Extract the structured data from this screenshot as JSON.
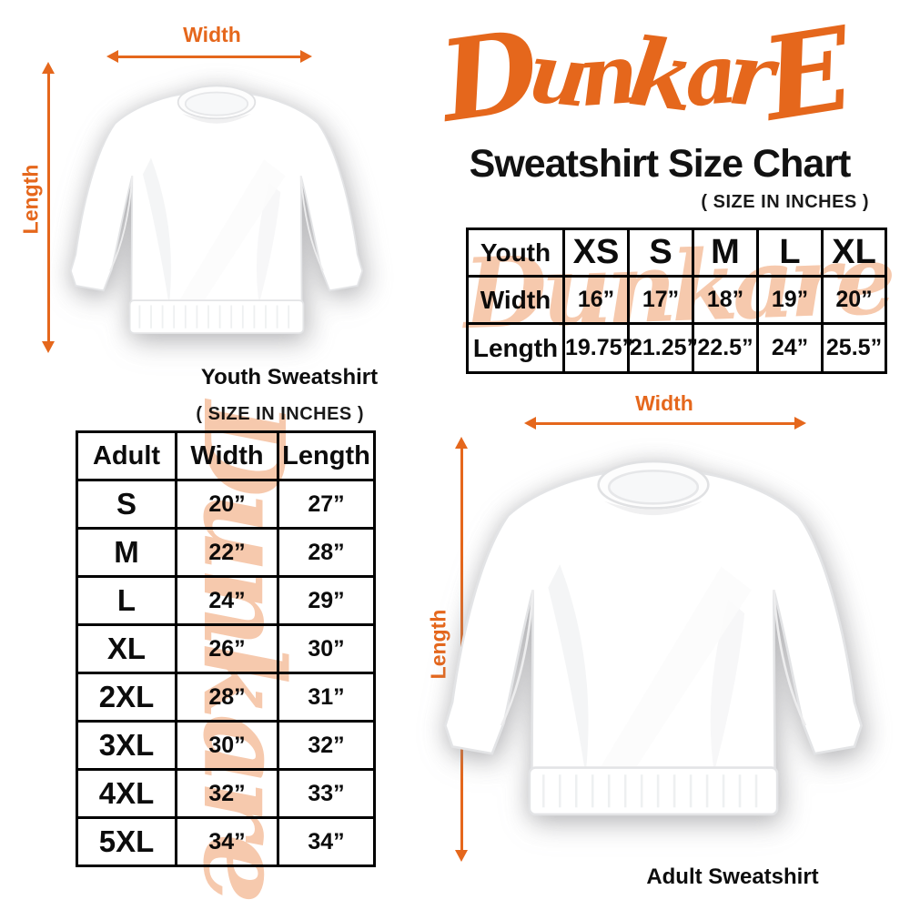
{
  "colors": {
    "accent": "#E5671C",
    "watermark": "#F6C9AD",
    "text": "#141414"
  },
  "logo": {
    "text": "DunkarE"
  },
  "header": {
    "title": "Sweatshirt Size Chart"
  },
  "watermark": {
    "text": "Dunkare"
  },
  "youth_diagram": {
    "width_label": "Width",
    "length_label": "Length",
    "caption": "Youth Sweatshirt"
  },
  "adult_diagram": {
    "width_label": "Width",
    "length_label": "Length",
    "caption": "Adult Sweatshirt"
  },
  "youth_table": {
    "size_note": "( SIZE IN INCHES )",
    "header": [
      "Youth",
      "XS",
      "S",
      "M",
      "L",
      "XL"
    ],
    "rows": [
      [
        "Width",
        "16”",
        "17”",
        "18”",
        "19”",
        "20”"
      ],
      [
        "Length",
        "19.75”",
        "21.25”",
        "22.5”",
        "24”",
        "25.5”"
      ]
    ]
  },
  "adult_table": {
    "size_note": "( SIZE IN INCHES )",
    "header": [
      "Adult",
      "Width",
      "Length"
    ],
    "rows": [
      [
        "S",
        "20”",
        "27”"
      ],
      [
        "M",
        "22”",
        "28”"
      ],
      [
        "L",
        "24”",
        "29”"
      ],
      [
        "XL",
        "26”",
        "30”"
      ],
      [
        "2XL",
        "28”",
        "31”"
      ],
      [
        "3XL",
        "30”",
        "32”"
      ],
      [
        "4XL",
        "32”",
        "33”"
      ],
      [
        "5XL",
        "34”",
        "34”"
      ]
    ]
  }
}
